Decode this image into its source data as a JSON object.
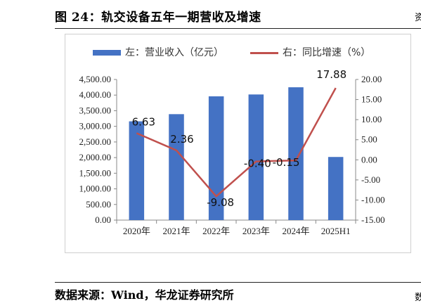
{
  "title": "图 24：轨交设备五年一期营收及增速",
  "source": "数据来源：Wind，华龙证券研究所",
  "edge_glyphs": [
    "资",
    "数"
  ],
  "colors": {
    "bar": "#4472c4",
    "line": "#c0504d"
  },
  "chart_data": {
    "type": "bar",
    "categories": [
      "2020年",
      "2021年",
      "2022年",
      "2023年",
      "2024年",
      "2025H1"
    ],
    "series": [
      {
        "name": "左：营业收入（亿元）",
        "type": "bar",
        "axis": "left",
        "values": [
          3160,
          3390,
          3960,
          4020,
          4250,
          2020
        ]
      },
      {
        "name": "右：同比增速（%）",
        "type": "line",
        "axis": "right",
        "values": [
          6.63,
          2.36,
          -9.08,
          -0.4,
          -0.15,
          17.88
        ]
      }
    ],
    "line_labels": [
      "6.63",
      "2.36",
      "-9.08",
      "-0.40",
      "-0.15",
      "17.88"
    ],
    "y_left": {
      "min": 0,
      "max": 4500,
      "step": 500,
      "ticks": [
        "0.00",
        "500.00",
        "1,000.00",
        "1,500.00",
        "2,000.00",
        "2,500.00",
        "3,000.00",
        "3,500.00",
        "4,000.00",
        "4,500.00"
      ]
    },
    "y_right": {
      "min": -15,
      "max": 20,
      "step": 5,
      "ticks": [
        "-15.00",
        "-10.00",
        "-5.00",
        "0.00",
        "5.00",
        "10.00",
        "15.00",
        "20.00"
      ]
    },
    "grid": false,
    "legend_position": "top"
  }
}
